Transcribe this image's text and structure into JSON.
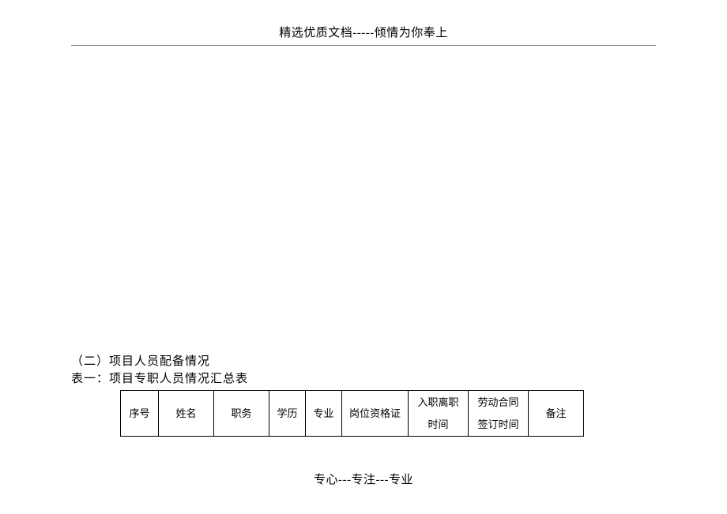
{
  "header": "精选优质文档-----倾情为你奉上",
  "section": {
    "heading": "（二）项目人员配备情况",
    "subheading": "表一：项目专职人员情况汇总表"
  },
  "table": {
    "columns": [
      {
        "label": "序号",
        "width": 48
      },
      {
        "label": "姓名",
        "width": 70
      },
      {
        "label": "职务",
        "width": 70
      },
      {
        "label": "学历",
        "width": 46
      },
      {
        "label": "专业",
        "width": 46
      },
      {
        "label": "岗位资格证",
        "width": 84
      },
      {
        "label": "入职离职\n时间",
        "width": 76
      },
      {
        "label": "劳动合同\n签订时间",
        "width": 76
      },
      {
        "label": "备注",
        "width": 70
      }
    ],
    "border_color": "#000000",
    "font_size": 13
  },
  "footer": "专心---专注---专业",
  "page": {
    "background": "#ffffff",
    "text_color": "#000000",
    "rule_color": "#888888"
  }
}
